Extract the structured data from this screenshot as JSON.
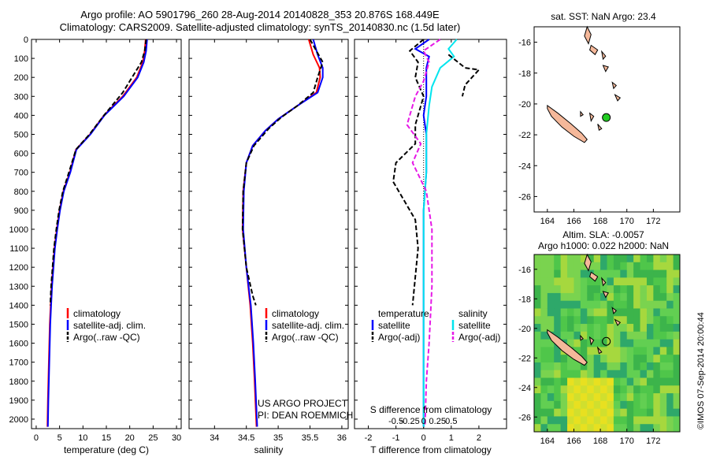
{
  "title_line1": "Argo profile: AO 5901796_260 28-Aug-2014 20140828_353 20.876S 168.449E",
  "title_line2": "Climatology: CARS2009. Satellite-adjusted climatology: synTS_20140830.nc (1.5d later)",
  "colors": {
    "climatology": "#ff0000",
    "satellite": "#0000ff",
    "argo": "#000000",
    "cyan": "#00e5ee",
    "magenta": "#e619e6",
    "land": "#f5b89a"
  },
  "chart_data": [
    {
      "type": "line",
      "name": "temperature-profile",
      "xlabel": "temperature (deg C)",
      "xlim": [
        -1,
        31
      ],
      "ylim": [
        0,
        2050
      ],
      "y_reversed": true,
      "xticks": [
        0,
        5,
        10,
        15,
        20,
        25,
        30
      ],
      "yticks": [
        0,
        100,
        200,
        300,
        400,
        500,
        600,
        700,
        800,
        900,
        1000,
        1100,
        1200,
        1300,
        1400,
        1500,
        1600,
        1700,
        1800,
        1900,
        2000
      ],
      "legend": [
        "climatology",
        "satellite-adj. clim.",
        "Argo(..raw -QC)"
      ],
      "series": [
        {
          "name": "climatology",
          "color": "#ff0000",
          "dash": false,
          "points": [
            [
              23.4,
              0
            ],
            [
              23.2,
              60
            ],
            [
              22.8,
              120
            ],
            [
              21.5,
              200
            ],
            [
              18.5,
              300
            ],
            [
              14.5,
              400
            ],
            [
              11.5,
              500
            ],
            [
              8.5,
              580
            ],
            [
              7.2,
              700
            ],
            [
              5.8,
              800
            ],
            [
              5.0,
              900
            ],
            [
              4.4,
              1000
            ],
            [
              3.9,
              1100
            ],
            [
              3.6,
              1200
            ],
            [
              3.3,
              1300
            ],
            [
              3.1,
              1400
            ],
            [
              2.9,
              1500
            ],
            [
              2.7,
              1700
            ],
            [
              2.5,
              1900
            ],
            [
              2.4,
              2040
            ]
          ]
        },
        {
          "name": "satellite-adj. clim.",
          "color": "#0000ff",
          "dash": false,
          "points": [
            [
              23.7,
              0
            ],
            [
              23.5,
              60
            ],
            [
              23.0,
              120
            ],
            [
              21.7,
              200
            ],
            [
              18.7,
              300
            ],
            [
              14.6,
              400
            ],
            [
              11.6,
              500
            ],
            [
              8.6,
              580
            ],
            [
              7.3,
              700
            ],
            [
              5.9,
              800
            ],
            [
              5.1,
              900
            ],
            [
              4.5,
              1000
            ],
            [
              4.0,
              1100
            ],
            [
              3.7,
              1200
            ],
            [
              3.4,
              1300
            ],
            [
              3.2,
              1400
            ],
            [
              3.0,
              1500
            ],
            [
              2.8,
              1700
            ],
            [
              2.6,
              1900
            ],
            [
              2.5,
              2040
            ]
          ]
        },
        {
          "name": "Argo(..raw -QC)",
          "color": "#000000",
          "dash": true,
          "points": [
            [
              23.5,
              0
            ],
            [
              23.2,
              60
            ],
            [
              22.5,
              120
            ],
            [
              21.0,
              180
            ],
            [
              18.5,
              280
            ],
            [
              14.5,
              400
            ],
            [
              11.4,
              500
            ],
            [
              8.5,
              580
            ],
            [
              7.0,
              700
            ],
            [
              5.7,
              800
            ],
            [
              4.9,
              900
            ],
            [
              4.3,
              1000
            ],
            [
              3.8,
              1100
            ],
            [
              3.5,
              1200
            ],
            [
              3.2,
              1300
            ],
            [
              3.0,
              1400
            ]
          ]
        }
      ]
    },
    {
      "type": "line",
      "name": "salinity-profile",
      "xlabel": "salinity",
      "xlim": [
        33.6,
        36.1
      ],
      "ylim": [
        0,
        2050
      ],
      "y_reversed": true,
      "xticks": [
        34,
        34.5,
        35,
        35.5,
        36
      ],
      "legend": [
        "climatology",
        "satellite-adj. clim.",
        "Argo(..raw -QC)"
      ],
      "annotation": [
        "US ARGO PROJECT",
        "PI: DEAN ROEMMICH"
      ],
      "series": [
        {
          "name": "climatology",
          "color": "#ff0000",
          "dash": false,
          "points": [
            [
              35.48,
              0
            ],
            [
              35.55,
              80
            ],
            [
              35.65,
              150
            ],
            [
              35.66,
              200
            ],
            [
              35.6,
              280
            ],
            [
              35.3,
              350
            ],
            [
              35.0,
              420
            ],
            [
              34.8,
              480
            ],
            [
              34.6,
              560
            ],
            [
              34.5,
              650
            ],
            [
              34.45,
              800
            ],
            [
              34.44,
              1000
            ],
            [
              34.5,
              1200
            ],
            [
              34.56,
              1400
            ],
            [
              34.6,
              1600
            ],
            [
              34.63,
              1800
            ],
            [
              34.66,
              2040
            ]
          ]
        },
        {
          "name": "satellite-adj. clim.",
          "color": "#0000ff",
          "dash": false,
          "points": [
            [
              35.55,
              0
            ],
            [
              35.62,
              80
            ],
            [
              35.7,
              150
            ],
            [
              35.7,
              200
            ],
            [
              35.62,
              280
            ],
            [
              35.3,
              350
            ],
            [
              35.0,
              420
            ],
            [
              34.8,
              480
            ],
            [
              34.6,
              560
            ],
            [
              34.5,
              650
            ],
            [
              34.46,
              800
            ],
            [
              34.45,
              1000
            ],
            [
              34.5,
              1200
            ],
            [
              34.57,
              1400
            ],
            [
              34.61,
              1600
            ],
            [
              34.64,
              1800
            ],
            [
              34.67,
              2040
            ]
          ]
        },
        {
          "name": "Argo(..raw -QC)",
          "color": "#000000",
          "dash": true,
          "points": [
            [
              35.5,
              0
            ],
            [
              35.6,
              60
            ],
            [
              35.7,
              120
            ],
            [
              35.62,
              200
            ],
            [
              35.55,
              280
            ],
            [
              35.3,
              350
            ],
            [
              35.05,
              410
            ],
            [
              34.85,
              470
            ],
            [
              34.62,
              560
            ],
            [
              34.5,
              650
            ],
            [
              34.45,
              800
            ],
            [
              34.44,
              1000
            ],
            [
              34.5,
              1200
            ],
            [
              34.6,
              1350
            ],
            [
              34.65,
              1400
            ]
          ]
        }
      ]
    },
    {
      "type": "line",
      "name": "difference-profile",
      "xlabel": "T difference from climatology",
      "xlabel_top": "S difference from climatology",
      "xlim": [
        -2.5,
        3
      ],
      "ylim": [
        0,
        2050
      ],
      "y_reversed": true,
      "xticks": [
        -2,
        -1,
        0,
        1,
        2
      ],
      "xticks_top": [
        "-0.5",
        "-0.25",
        "0",
        "0.25",
        "0.5"
      ],
      "legend_left": [
        "temperature",
        "satellite",
        "Argo(-adj)"
      ],
      "legend_right": [
        "salinity",
        "satellite",
        "Argo(-adj)"
      ],
      "series": [
        {
          "name": "T satellite",
          "color": "#0000ff",
          "dash": false,
          "points": [
            [
              0.2,
              0
            ],
            [
              -0.3,
              50
            ],
            [
              0.2,
              90
            ],
            [
              0.1,
              150
            ],
            [
              0.1,
              300
            ],
            [
              0.0,
              400
            ],
            [
              0.1,
              500
            ],
            [
              0.1,
              700
            ],
            [
              0.0,
              900
            ],
            [
              0.0,
              2040
            ]
          ]
        },
        {
          "name": "T Argo(-adj)",
          "color": "#000000",
          "dash": true,
          "points": [
            [
              0.0,
              0
            ],
            [
              -0.5,
              60
            ],
            [
              -0.2,
              120
            ],
            [
              -0.3,
              200
            ],
            [
              0.0,
              300
            ],
            [
              -0.3,
              450
            ],
            [
              -0.3,
              550
            ],
            [
              -1.0,
              650
            ],
            [
              -1.1,
              750
            ],
            [
              -0.7,
              850
            ],
            [
              -0.3,
              950
            ],
            [
              -0.2,
              1100
            ],
            [
              -0.3,
              1250
            ],
            [
              -0.4,
              1400
            ]
          ]
        },
        {
          "name": "S satellite",
          "color": "#00e5ee",
          "dash": false,
          "points": [
            [
              1.2,
              0
            ],
            [
              0.9,
              50
            ],
            [
              1.1,
              90
            ],
            [
              0.6,
              150
            ],
            [
              0.3,
              250
            ],
            [
              0.2,
              350
            ],
            [
              0.1,
              500
            ],
            [
              0.1,
              700
            ],
            [
              0.0,
              900
            ],
            [
              0.0,
              2040
            ]
          ]
        },
        {
          "name": "S Argo(-adj)",
          "color": "#e619e6",
          "dash": true,
          "points": [
            [
              0.6,
              0
            ],
            [
              0.0,
              60
            ],
            [
              0.2,
              120
            ],
            [
              0.0,
              220
            ],
            [
              -0.3,
              300
            ],
            [
              -0.6,
              450
            ],
            [
              -0.1,
              550
            ],
            [
              -0.4,
              650
            ],
            [
              0.1,
              800
            ],
            [
              0.3,
              1000
            ],
            [
              0.3,
              1300
            ],
            [
              0.2,
              1600
            ],
            [
              0.1,
              1800
            ],
            [
              0.05,
              2040
            ]
          ]
        },
        {
          "name": "Argo S dashed",
          "color": "#000000",
          "dash": true,
          "points": [
            [
              0.9,
              80
            ],
            [
              1.5,
              150
            ],
            [
              2.0,
              160
            ],
            [
              1.5,
              240
            ],
            [
              1.4,
              300
            ]
          ]
        }
      ]
    },
    {
      "type": "map",
      "name": "sst-map",
      "title": "sat. SST: NaN Argo: 23.4",
      "xlim": [
        163,
        174
      ],
      "ylim": [
        -27,
        -15
      ],
      "xticks": [
        164,
        166,
        168,
        170,
        172
      ],
      "yticks": [
        -16,
        -18,
        -20,
        -22,
        -24,
        -26
      ],
      "float": [
        168.45,
        -20.88
      ]
    },
    {
      "type": "map",
      "name": "sla-map",
      "title": "Altim. SLA: -0.0057",
      "subtitle": "Argo h1000: 0.022 h2000: NaN",
      "xlim": [
        163,
        174
      ],
      "ylim": [
        -27,
        -15
      ],
      "xticks": [
        164,
        166,
        168,
        170,
        172
      ],
      "yticks": [
        -16,
        -18,
        -20,
        -22,
        -24,
        -26
      ],
      "float": [
        168.45,
        -20.88
      ]
    }
  ],
  "watermark": "©IMOS 07-Sep-2014 20:00:44"
}
